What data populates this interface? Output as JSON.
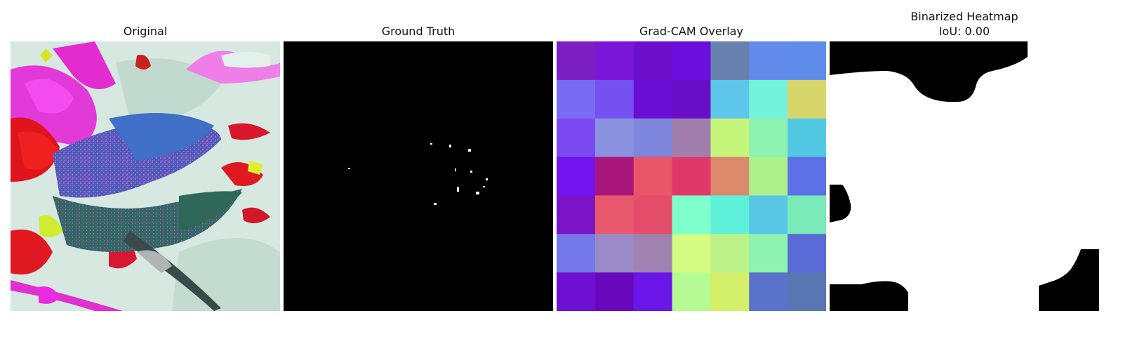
{
  "panels": {
    "original": {
      "title": "Original"
    },
    "ground_truth": {
      "title": "Ground Truth"
    },
    "gradcam": {
      "title": "Grad-CAM Overlay"
    },
    "binarized": {
      "title_line1": "Binarized Heatmap",
      "title_line2": "IoU: 0.00"
    }
  },
  "gradcam_grid": {
    "rows": 7,
    "cols": 7,
    "colors": [
      [
        "#7b1fc2",
        "#7a16d8",
        "#6d10cc",
        "#6a0fdc",
        "#6880ad",
        "#618aea",
        "#5d8cea"
      ],
      [
        "#786df2",
        "#7551f0",
        "#6a10d6",
        "#6a0fc8",
        "#5ec6ea",
        "#73f4da",
        "#d6d66a"
      ],
      [
        "#7a4af0",
        "#8b93e0",
        "#7d86dc",
        "#a07fae",
        "#c6f57c",
        "#8ef2b0",
        "#52c8e2"
      ],
      [
        "#7214ee",
        "#a9167a",
        "#e85468",
        "#e0386a",
        "#dc8a6c",
        "#acf08c",
        "#5e70e6"
      ],
      [
        "#7a14c6",
        "#e8586c",
        "#e44e6a",
        "#7effcc",
        "#5ef0d8",
        "#5ac6e6",
        "#7aeab8"
      ],
      [
        "#7478e8",
        "#9a8bc6",
        "#a082b0",
        "#d4fb82",
        "#bcf288",
        "#8ef2b0",
        "#5a6ad6"
      ],
      [
        "#6e10d2",
        "#6808bc",
        "#6a16e8",
        "#b6fa94",
        "#d4ef6a",
        "#5a72c8",
        "#5a76b2"
      ]
    ]
  },
  "colors": {
    "background": "#ffffff",
    "mask_on": "#ffffff",
    "mask_off": "#000000"
  }
}
